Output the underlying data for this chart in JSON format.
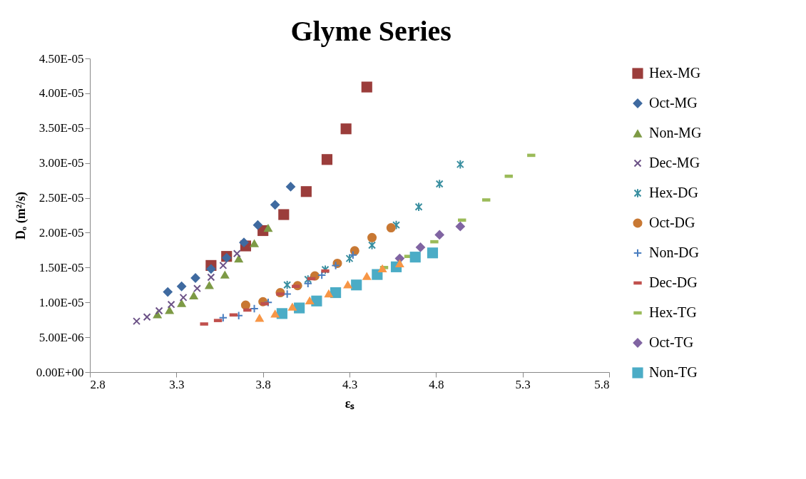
{
  "chart_data": {
    "type": "scatter",
    "title": "Glyme Series",
    "xlabel": "εₛ",
    "ylabel": "Dₒ (m²/s)",
    "xlim": [
      2.8,
      5.8
    ],
    "xticks": [
      2.8,
      3.3,
      3.8,
      4.3,
      4.8,
      5.3,
      5.8
    ],
    "ylim": [
      0,
      4.5e-05
    ],
    "yticks": [
      {
        "value": 0,
        "label": "0.00E+00"
      },
      {
        "value": 5e-06,
        "label": "5.00E-06"
      },
      {
        "value": 1e-05,
        "label": "1.00E-05"
      },
      {
        "value": 1.5e-05,
        "label": "1.50E-05"
      },
      {
        "value": 2e-05,
        "label": "2.00E-05"
      },
      {
        "value": 2.5e-05,
        "label": "2.50E-05"
      },
      {
        "value": 3e-05,
        "label": "3.00E-05"
      },
      {
        "value": 3.5e-05,
        "label": "3.50E-05"
      },
      {
        "value": 4e-05,
        "label": "4.00E-05"
      },
      {
        "value": 4.5e-05,
        "label": "4.50E-05"
      }
    ],
    "grid": false,
    "legend": "right",
    "series": [
      {
        "name": "Hex-MG",
        "color": "#9b3d3b",
        "marker": "square",
        "x": [
          3.5,
          3.59,
          3.7,
          3.8,
          3.92,
          4.05,
          4.17,
          4.28,
          4.4
        ],
        "values": [
          1.53e-05,
          1.66e-05,
          1.81e-05,
          2.03e-05,
          2.26e-05,
          2.59e-05,
          3.05e-05,
          3.49e-05,
          4.09e-05
        ]
      },
      {
        "name": "Oct-MG",
        "color": "#3f6aa0",
        "marker": "diamond",
        "x": [
          3.25,
          3.33,
          3.41,
          3.5,
          3.59,
          3.69,
          3.77,
          3.87,
          3.96
        ],
        "values": [
          1.15e-05,
          1.23e-05,
          1.35e-05,
          1.48e-05,
          1.64e-05,
          1.86e-05,
          2.11e-05,
          2.4e-05,
          2.66e-05
        ]
      },
      {
        "name": "Non-MG",
        "color": "#7d9a45",
        "marker": "triangle",
        "x": [
          3.19,
          3.26,
          3.33,
          3.4,
          3.49,
          3.58,
          3.66,
          3.75,
          3.83
        ],
        "values": [
          8.3e-06,
          8.9e-06,
          9.9e-06,
          1.1e-05,
          1.25e-05,
          1.4e-05,
          1.63e-05,
          1.85e-05,
          2.07e-05
        ]
      },
      {
        "name": "Dec-MG",
        "color": "#6c5287",
        "marker": "x",
        "x": [
          3.07,
          3.13,
          3.2,
          3.27,
          3.34,
          3.42,
          3.5,
          3.57,
          3.65
        ],
        "values": [
          7.3e-06,
          7.9e-06,
          8.8e-06,
          9.7e-06,
          1.07e-05,
          1.2e-05,
          1.36e-05,
          1.53e-05,
          1.7e-05
        ]
      },
      {
        "name": "Hex-DG",
        "color": "#3a8fa0",
        "marker": "cross",
        "x": [
          3.94,
          4.06,
          4.16,
          4.3,
          4.43,
          4.57,
          4.7,
          4.82,
          4.94
        ],
        "values": [
          1.25e-05,
          1.33e-05,
          1.47e-05,
          1.63e-05,
          1.82e-05,
          2.11e-05,
          2.37e-05,
          2.7e-05,
          2.98e-05
        ]
      },
      {
        "name": "Oct-DG",
        "color": "#c87833",
        "marker": "circle",
        "x": [
          3.7,
          3.8,
          3.9,
          4.0,
          4.1,
          4.23,
          4.33,
          4.43,
          4.54
        ],
        "values": [
          9.6e-06,
          1.01e-05,
          1.14e-05,
          1.24e-05,
          1.38e-05,
          1.56e-05,
          1.74e-05,
          1.93e-05,
          2.07e-05
        ]
      },
      {
        "name": "Non-DG",
        "color": "#4a7ec0",
        "marker": "plus",
        "x": [
          3.57,
          3.66,
          3.75,
          3.83,
          3.94,
          4.06,
          4.14,
          4.22,
          4.32
        ],
        "values": [
          7.8e-06,
          8.1e-06,
          9.1e-06,
          1e-05,
          1.12e-05,
          1.27e-05,
          1.39e-05,
          1.53e-05,
          1.68e-05
        ]
      },
      {
        "name": "Dec-DG",
        "color": "#c0504d",
        "x": [
          3.46,
          3.54,
          3.63,
          3.71,
          3.81,
          3.9,
          3.99,
          4.08,
          4.16
        ],
        "values": [
          6.9e-06,
          7.4e-06,
          8.2e-06,
          8.9e-06,
          9.8e-06,
          1.12e-05,
          1.23e-05,
          1.34e-05,
          1.45e-05
        ]
      },
      {
        "name": "Hex-TG",
        "color": "#9bbb59",
        "x": [
          4.5,
          4.64,
          4.79,
          4.95,
          5.09,
          5.22,
          5.35
        ],
        "values": [
          1.5e-05,
          1.66e-05,
          1.87e-05,
          2.18e-05,
          2.47e-05,
          2.81e-05,
          3.11e-05
        ]
      },
      {
        "name": "Oct-TG",
        "color": "#8064a2",
        "marker": "diamond",
        "x": [
          4.59,
          4.71,
          4.82,
          4.94
        ],
        "values": [
          1.63e-05,
          1.79e-05,
          1.97e-05,
          2.09e-05
        ]
      },
      {
        "name": "Non-TG",
        "color": "#4bacc6",
        "marker": "square",
        "x": [
          3.91,
          4.01,
          4.11,
          4.22,
          4.34,
          4.46,
          4.57,
          4.68,
          4.78
        ],
        "values": [
          8.4e-06,
          9.2e-06,
          1.02e-05,
          1.14e-05,
          1.25e-05,
          1.4e-05,
          1.51e-05,
          1.65e-05,
          1.71e-05
        ]
      },
      {
        "color": "#f79646",
        "marker": "triangle",
        "x": [
          3.78,
          3.87,
          3.97,
          4.07,
          4.18,
          4.29,
          4.4,
          4.49,
          4.59
        ],
        "values": [
          7.8e-06,
          8.4e-06,
          9.4e-06,
          1.03e-05,
          1.13e-05,
          1.26e-05,
          1.38e-05,
          1.49e-05,
          1.56e-05
        ]
      }
    ]
  }
}
